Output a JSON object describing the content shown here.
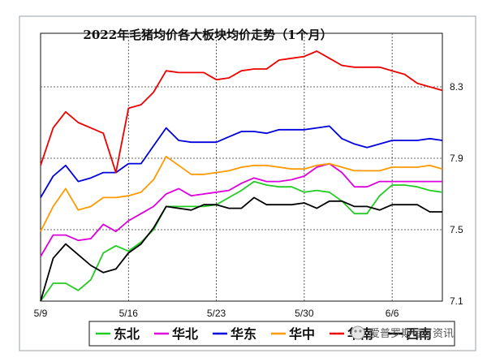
{
  "chart_data": {
    "type": "line",
    "title": "2022年毛猪均价各大板块均价走势（1个月）",
    "xlabel": "",
    "ylabel": "",
    "x_tick_labels": [
      "5/9",
      "5/16",
      "5/23",
      "5/30",
      "6/6"
    ],
    "y_tick_labels": [
      "7.1",
      "7.5",
      "7.9",
      "8.3"
    ],
    "ylim": [
      7.1,
      8.6
    ],
    "grid": "dotted horizontal at y ticks, dotted vertical at x ticks",
    "legend_position": "bottom",
    "series": [
      {
        "name": "东北",
        "color": "#22cc22",
        "values": [
          7.1,
          7.2,
          7.2,
          7.16,
          7.22,
          7.37,
          7.41,
          7.38,
          7.43,
          7.5,
          7.63,
          7.63,
          7.63,
          7.63,
          7.64,
          7.68,
          7.72,
          7.77,
          7.75,
          7.74,
          7.74,
          7.71,
          7.72,
          7.71,
          7.66,
          7.59,
          7.59,
          7.69,
          7.75,
          7.75,
          7.74,
          7.72,
          7.71
        ]
      },
      {
        "name": "华北",
        "color": "#dd00dd",
        "values": [
          7.35,
          7.47,
          7.47,
          7.44,
          7.45,
          7.53,
          7.49,
          7.55,
          7.59,
          7.63,
          7.7,
          7.73,
          7.69,
          7.7,
          7.71,
          7.72,
          7.76,
          7.79,
          7.77,
          7.77,
          7.78,
          7.8,
          7.85,
          7.87,
          7.82,
          7.74,
          7.74,
          7.77,
          7.77,
          7.77,
          7.77,
          7.77,
          7.77
        ]
      },
      {
        "name": "华东",
        "color": "#0000dd",
        "values": [
          7.68,
          7.8,
          7.86,
          7.77,
          7.79,
          7.82,
          7.82,
          7.87,
          7.87,
          7.97,
          8.07,
          8.0,
          7.99,
          7.99,
          7.99,
          8.02,
          8.05,
          8.05,
          8.04,
          8.06,
          8.06,
          8.06,
          8.07,
          8.08,
          8.01,
          7.98,
          7.96,
          7.98,
          8.0,
          8.0,
          8.0,
          8.01,
          8.0
        ]
      },
      {
        "name": "华中",
        "color": "#ff9900",
        "values": [
          7.49,
          7.63,
          7.73,
          7.61,
          7.63,
          7.68,
          7.68,
          7.69,
          7.71,
          7.78,
          7.91,
          7.86,
          7.81,
          7.81,
          7.82,
          7.83,
          7.85,
          7.86,
          7.86,
          7.85,
          7.84,
          7.84,
          7.86,
          7.87,
          7.85,
          7.83,
          7.83,
          7.83,
          7.85,
          7.85,
          7.85,
          7.86,
          7.84
        ]
      },
      {
        "name": "华南",
        "color": "#ee0000",
        "values": [
          7.86,
          8.07,
          8.16,
          8.1,
          8.07,
          8.04,
          7.82,
          8.18,
          8.2,
          8.27,
          8.39,
          8.38,
          8.38,
          8.38,
          8.34,
          8.35,
          8.39,
          8.4,
          8.4,
          8.45,
          8.46,
          8.47,
          8.5,
          8.46,
          8.42,
          8.41,
          8.41,
          8.41,
          8.39,
          8.37,
          8.32,
          8.3,
          8.28
        ]
      },
      {
        "name": "西南",
        "color": "#000000",
        "values": [
          7.1,
          7.34,
          7.42,
          7.36,
          7.3,
          7.26,
          7.28,
          7.37,
          7.42,
          7.51,
          7.63,
          7.62,
          7.61,
          7.64,
          7.64,
          7.62,
          7.62,
          7.68,
          7.64,
          7.64,
          7.64,
          7.65,
          7.62,
          7.66,
          7.66,
          7.63,
          7.63,
          7.61,
          7.64,
          7.64,
          7.64,
          7.6,
          7.6
        ]
      }
    ],
    "x_tick_index": [
      0,
      7,
      14,
      21,
      28
    ]
  },
  "legend": {
    "items": [
      "东北",
      "华北",
      "华东",
      "华中",
      "华南",
      "西南"
    ]
  },
  "watermark": {
    "text": "爱普罗斯每日资讯"
  }
}
